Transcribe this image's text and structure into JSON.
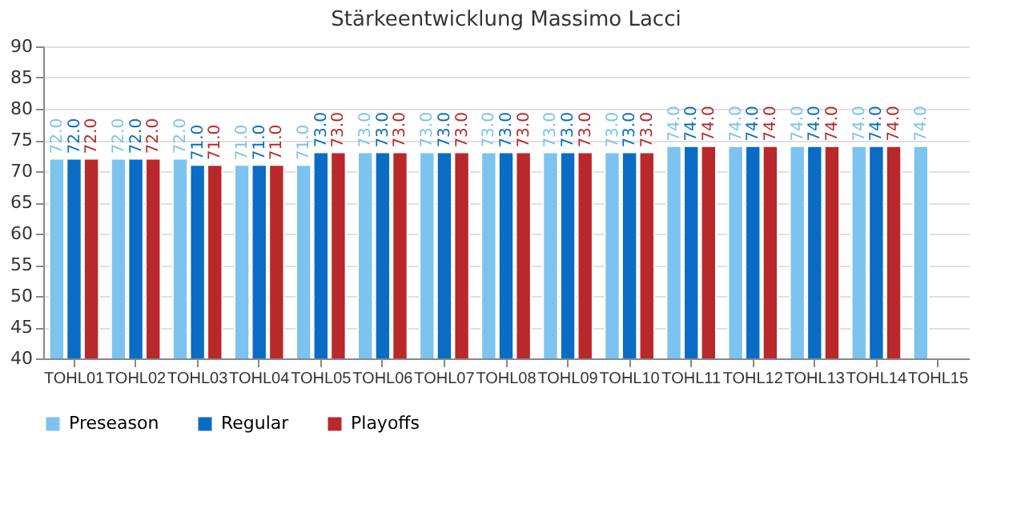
{
  "chart_data": {
    "type": "bar",
    "title": "Stärkeentwicklung Massimo Lacci",
    "categories": [
      "TOHL01",
      "TOHL02",
      "TOHL03",
      "TOHL04",
      "TOHL05",
      "TOHL06",
      "TOHL07",
      "TOHL08",
      "TOHL09",
      "TOHL10",
      "TOHL11",
      "TOHL12",
      "TOHL13",
      "TOHL14",
      "TOHL15"
    ],
    "series": [
      {
        "name": "Preseason",
        "color": "#7cc3ef",
        "values": [
          72,
          72,
          72,
          71,
          71,
          73,
          73,
          73,
          73,
          73,
          74,
          74,
          74,
          74,
          74
        ],
        "value_labels": [
          "72.0",
          "72.0",
          "72.0",
          "71.0",
          "71.0",
          "73.0",
          "73.0",
          "73.0",
          "73.0",
          "73.0",
          "74.0",
          "74.0",
          "74.0",
          "74.0",
          "74.0"
        ]
      },
      {
        "name": "Regular",
        "color": "#0a6cc4",
        "values": [
          72,
          72,
          71,
          71,
          73,
          73,
          73,
          73,
          73,
          73,
          74,
          74,
          74,
          74,
          null
        ],
        "value_labels": [
          "72.0",
          "72.0",
          "71.0",
          "71.0",
          "73.0",
          "73.0",
          "73.0",
          "73.0",
          "73.0",
          "73.0",
          "74.0",
          "74.0",
          "74.0",
          "74.0",
          null
        ]
      },
      {
        "name": "Playoffs",
        "color": "#b9282a",
        "values": [
          72,
          72,
          71,
          71,
          73,
          73,
          73,
          73,
          73,
          73,
          74,
          74,
          74,
          74,
          null
        ],
        "value_labels": [
          "72.0",
          "72.0",
          "71.0",
          "71.0",
          "73.0",
          "73.0",
          "73.0",
          "73.0",
          "73.0",
          "73.0",
          "74.0",
          "74.0",
          "74.0",
          "74.0",
          null
        ]
      }
    ],
    "ylim": [
      40,
      90
    ],
    "yticks": [
      40,
      45,
      50,
      55,
      60,
      65,
      70,
      75,
      80,
      85,
      90
    ],
    "grid": "y",
    "legend": "bottom"
  }
}
